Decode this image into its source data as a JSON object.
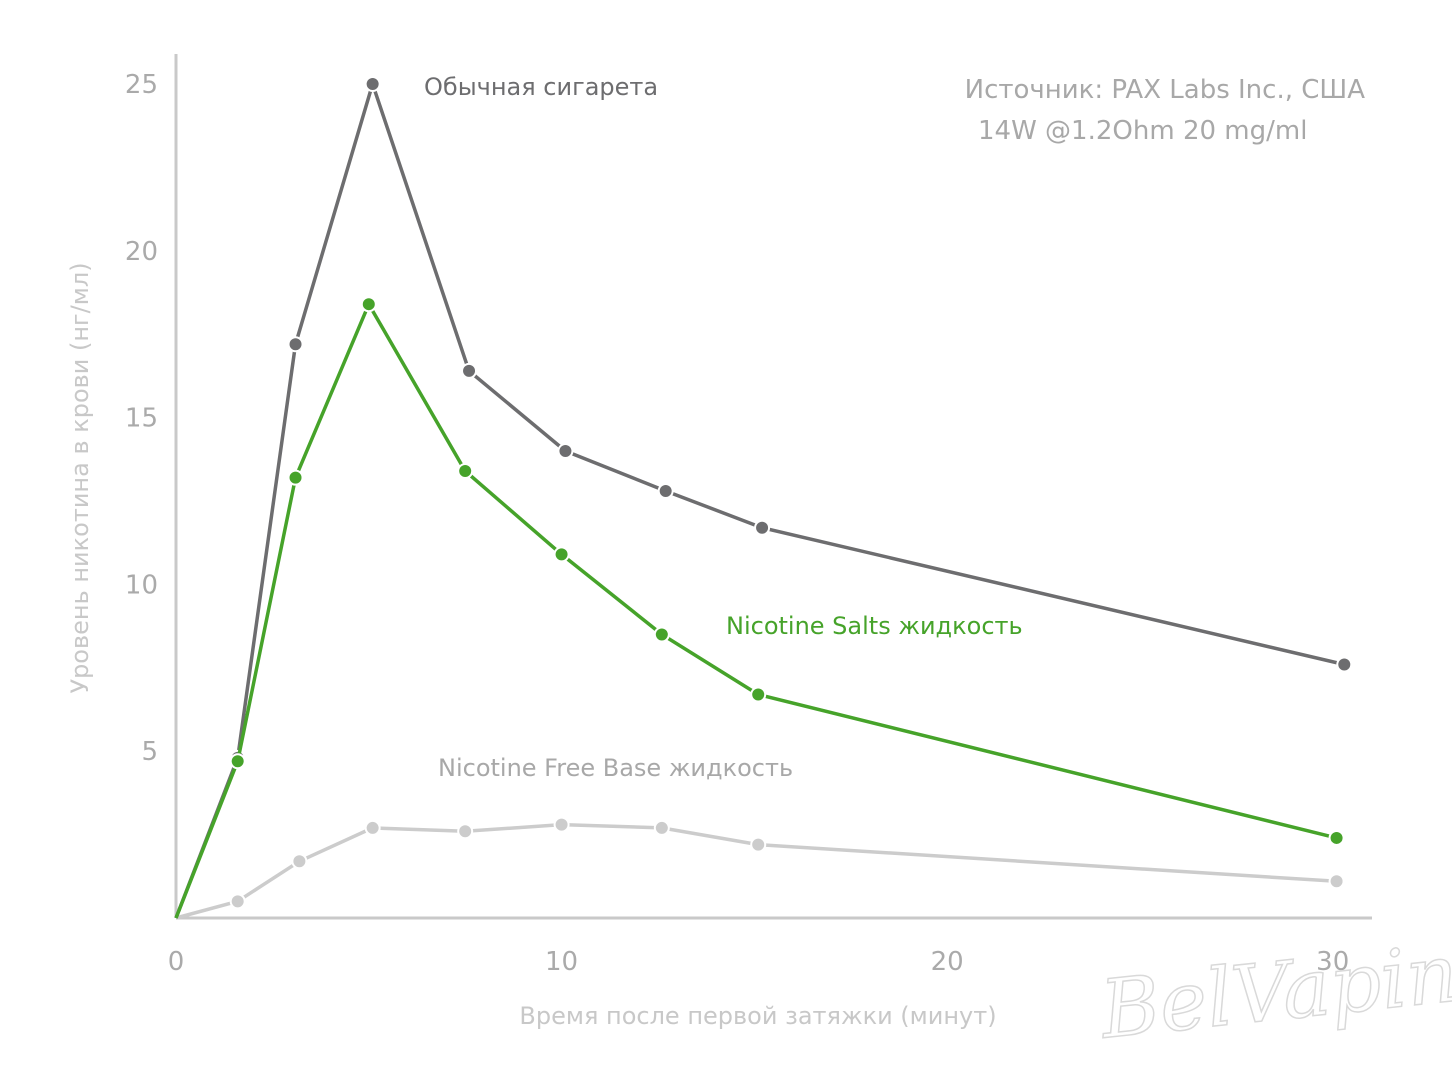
{
  "source": {
    "line1": "Источник: PAX Labs Inc., США",
    "line2": "14W @1.2Ohm 20 mg/ml"
  },
  "watermark": "BelVaping",
  "chart_data": {
    "type": "line",
    "xlabel": "Время после первой затяжки (минут)",
    "ylabel": "Уровень никотина в крови (нг/мл)",
    "xlim": [
      0,
      30.5
    ],
    "ylim": [
      0,
      25.9
    ],
    "xticks": [
      0,
      10,
      20,
      30
    ],
    "yticks": [
      5,
      10,
      15,
      20,
      25
    ],
    "grid": false,
    "legend": "none",
    "series": [
      {
        "name": "Обычная сигарета",
        "color": "#6d6d6f",
        "x": [
          0,
          1.6,
          3.1,
          5.1,
          7.6,
          10.1,
          12.7,
          15.2,
          30.3
        ],
        "y": [
          0,
          4.8,
          17.2,
          25.0,
          16.4,
          14.0,
          12.8,
          11.7,
          7.6
        ]
      },
      {
        "name": "Nicotine Salts жидкость",
        "color": "#46a32a",
        "x": [
          0,
          1.6,
          3.1,
          5.0,
          7.5,
          10.0,
          12.6,
          15.1,
          30.1
        ],
        "y": [
          0,
          4.7,
          13.2,
          18.4,
          13.4,
          10.9,
          8.5,
          6.7,
          2.4
        ]
      },
      {
        "name": "Nicotine Free Base жидкость",
        "color": "#cccccc",
        "x": [
          0,
          1.6,
          3.2,
          5.1,
          7.5,
          10.0,
          12.6,
          15.1,
          30.1
        ],
        "y": [
          0,
          0.5,
          1.7,
          2.7,
          2.6,
          2.8,
          2.7,
          2.2,
          1.1
        ]
      }
    ]
  }
}
